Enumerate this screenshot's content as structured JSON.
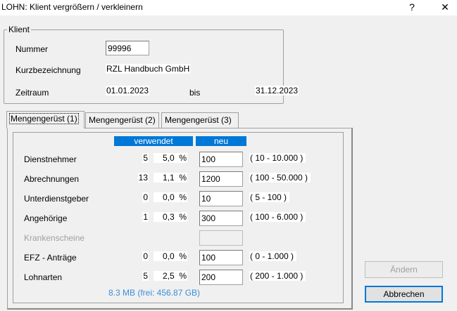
{
  "window": {
    "title": "LOHN: Klient vergrößern / verkleinern",
    "help": "?",
    "close": "✕"
  },
  "klient": {
    "legend": "Klient",
    "nummer_label": "Nummer",
    "nummer": "99996",
    "kurz_label": "Kurzbezeichnung",
    "kurz": "RZL Handbuch GmbH",
    "zeitraum_label": "Zeitraum",
    "von": "01.01.2023",
    "bis_label": "bis",
    "bis": "31.12.2023"
  },
  "tabs": [
    {
      "label": "Mengengerüst (1)",
      "active": true
    },
    {
      "label": "Mengengerüst (2)"
    },
    {
      "label": "Mengengerüst (3)"
    }
  ],
  "table": {
    "col_used": "verwendet",
    "col_new": "neu",
    "rows": [
      {
        "label": "Dienstnehmer",
        "count": "5",
        "pct": "5,0  %",
        "neu": "100",
        "range": "( 10 - 10.000 )"
      },
      {
        "label": "Abrechnungen",
        "count": "13",
        "pct": "1,1  %",
        "neu": "1200",
        "range": "( 100 - 50.000 )"
      },
      {
        "label": "Unterdienstgeber",
        "count": "0",
        "pct": "0,0  %",
        "neu": "10",
        "range": "( 5 - 100 )"
      },
      {
        "label": "Angehörige",
        "count": "1",
        "pct": "0,3  %",
        "neu": "300",
        "range": "( 100 - 6.000 )"
      },
      {
        "label": "Krankenscheine",
        "disabled": true
      },
      {
        "label": "EFZ - Anträge",
        "count": "0",
        "pct": "0,0  %",
        "neu": "100",
        "range": "( 0 - 1.000 )"
      },
      {
        "label": "Lohnarten",
        "count": "5",
        "pct": "2,5  %",
        "neu": "200",
        "range": "( 200 - 1.000 )"
      }
    ]
  },
  "footer": {
    "size": "8.3 MB  (frei: 456.87 GB)",
    "color": "#3c8fd8"
  },
  "buttons": {
    "aendern": "Ändern",
    "abbrechen": "Abbrechen"
  }
}
